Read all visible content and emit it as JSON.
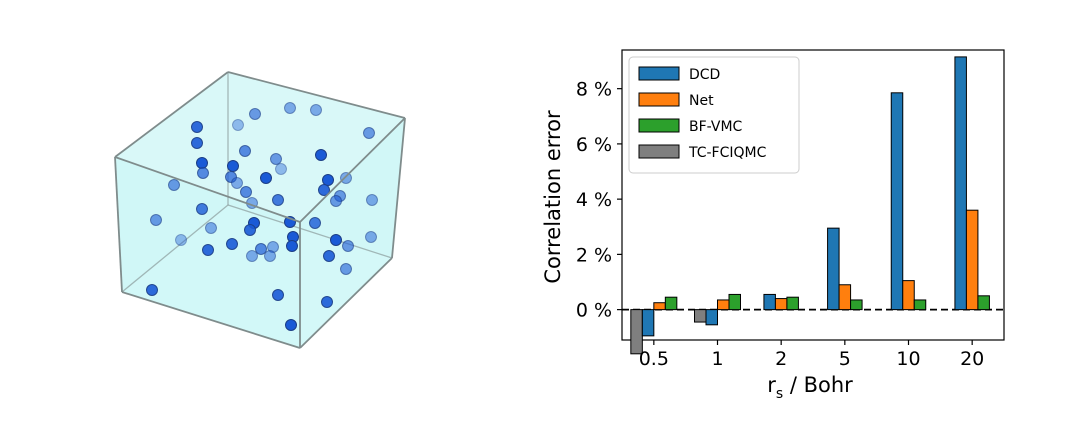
{
  "left_panel": {
    "box_face_color": "#ccf6f6",
    "box_edge_color": "#7f8c8c",
    "particle_color": "#1a5ad6",
    "particle_edge_color": "#1c3e86"
  },
  "chart_data": {
    "type": "bar",
    "categories": [
      "0.5",
      "1",
      "2",
      "5",
      "10",
      "20"
    ],
    "xlabel_main": "r",
    "xlabel_sub": "s",
    "xlabel_rest": " / Bohr",
    "ylabel": "Correlation error",
    "ylim": [
      -1.1,
      9.4
    ],
    "yticks": [
      0,
      2,
      4,
      6,
      8
    ],
    "ytick_labels": [
      "0 %",
      "2 %",
      "4 %",
      "6 %",
      "8 %"
    ],
    "zero_line": "dashed",
    "grid": false,
    "legend_position": "top-left",
    "series": [
      {
        "name": "TC-FCIQMC",
        "color": "#7f7f7f",
        "values": [
          -1.6,
          -0.45,
          null,
          null,
          null,
          null
        ]
      },
      {
        "name": "DCD",
        "color": "#1f77b4",
        "values": [
          -0.95,
          -0.55,
          0.55,
          2.95,
          7.85,
          9.15
        ]
      },
      {
        "name": "Net",
        "color": "#ff7f0e",
        "values": [
          0.25,
          0.35,
          0.4,
          0.9,
          1.05,
          3.6
        ]
      },
      {
        "name": "BF-VMC",
        "color": "#2ca02c",
        "values": [
          0.45,
          0.55,
          0.45,
          0.35,
          0.35,
          0.5
        ]
      }
    ],
    "legend_order": [
      "DCD",
      "Net",
      "BF-VMC",
      "TC-FCIQMC"
    ]
  }
}
